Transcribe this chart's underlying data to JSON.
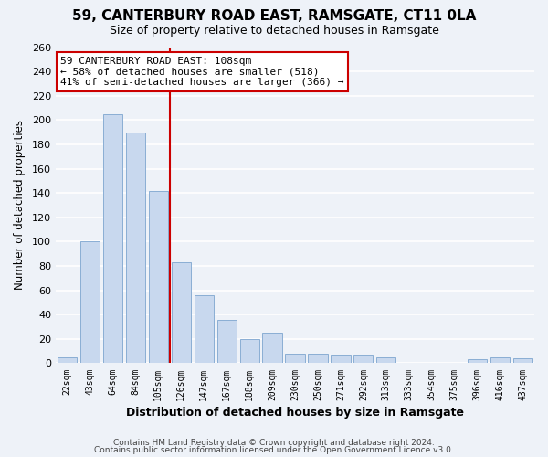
{
  "title": "59, CANTERBURY ROAD EAST, RAMSGATE, CT11 0LA",
  "subtitle": "Size of property relative to detached houses in Ramsgate",
  "xlabel": "Distribution of detached houses by size in Ramsgate",
  "ylabel": "Number of detached properties",
  "categories": [
    "22sqm",
    "43sqm",
    "64sqm",
    "84sqm",
    "105sqm",
    "126sqm",
    "147sqm",
    "167sqm",
    "188sqm",
    "209sqm",
    "230sqm",
    "250sqm",
    "271sqm",
    "292sqm",
    "313sqm",
    "333sqm",
    "354sqm",
    "375sqm",
    "396sqm",
    "416sqm",
    "437sqm"
  ],
  "values": [
    5,
    100,
    205,
    190,
    142,
    83,
    56,
    36,
    20,
    25,
    8,
    8,
    7,
    7,
    5,
    0,
    0,
    0,
    3,
    5,
    4
  ],
  "bar_color": "#c8d8ee",
  "bar_edge_color": "#8aaed4",
  "vline_color": "#cc0000",
  "annotation_text_line1": "59 CANTERBURY ROAD EAST: 108sqm",
  "annotation_text_line2": "← 58% of detached houses are smaller (518)",
  "annotation_text_line3": "41% of semi-detached houses are larger (366) →",
  "annotation_box_facecolor": "#ffffff",
  "annotation_box_edgecolor": "#cc0000",
  "ylim": [
    0,
    260
  ],
  "yticks": [
    0,
    20,
    40,
    60,
    80,
    100,
    120,
    140,
    160,
    180,
    200,
    220,
    240,
    260
  ],
  "background_color": "#eef2f8",
  "grid_color": "#ffffff",
  "title_fontsize": 11,
  "subtitle_fontsize": 9,
  "footer_line1": "Contains HM Land Registry data © Crown copyright and database right 2024.",
  "footer_line2": "Contains public sector information licensed under the Open Government Licence v3.0."
}
